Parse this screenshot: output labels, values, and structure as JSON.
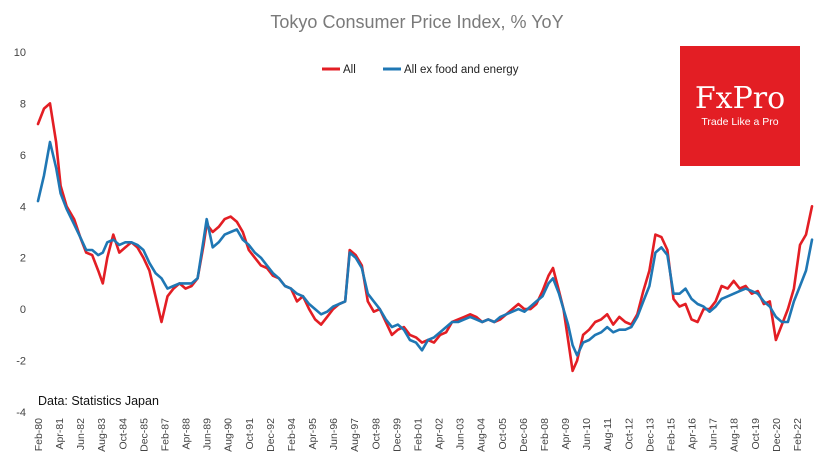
{
  "chart_data": {
    "type": "line",
    "title": "Tokyo Consumer Price Index, % YoY",
    "xlabel": "",
    "ylabel": "",
    "ylim": [
      -4,
      10
    ],
    "yticks": [
      -4,
      -2,
      0,
      2,
      4,
      6,
      8,
      10
    ],
    "grid": false,
    "legend": "top-center",
    "x_start": "Feb-80",
    "x_end": "Dec-22",
    "xticks": [
      "Feb-80",
      "Apr-81",
      "Jun-82",
      "Aug-83",
      "Oct-84",
      "Dec-85",
      "Feb-87",
      "Apr-88",
      "Jun-89",
      "Aug-90",
      "Oct-91",
      "Dec-92",
      "Feb-94",
      "Apr-95",
      "Jun-96",
      "Aug-97",
      "Oct-98",
      "Dec-99",
      "Feb-01",
      "Apr-02",
      "Jun-03",
      "Aug-04",
      "Oct-05",
      "Dec-06",
      "Feb-08",
      "Apr-09",
      "Jun-10",
      "Aug-11",
      "Oct-12",
      "Dec-13",
      "Feb-15",
      "Apr-16",
      "Jun-17",
      "Aug-18",
      "Oct-19",
      "Dec-20",
      "Feb-22"
    ],
    "series": [
      {
        "name": "All",
        "color": "#e31e24",
        "points": [
          [
            "1980-02",
            7.2
          ],
          [
            "1980-06",
            7.8
          ],
          [
            "1980-10",
            8.0
          ],
          [
            "1981-02",
            6.5
          ],
          [
            "1981-05",
            4.8
          ],
          [
            "1981-09",
            4.0
          ],
          [
            "1982-02",
            3.5
          ],
          [
            "1982-06",
            2.8
          ],
          [
            "1982-10",
            2.2
          ],
          [
            "1983-02",
            2.1
          ],
          [
            "1983-06",
            1.5
          ],
          [
            "1983-09",
            1.0
          ],
          [
            "1983-12",
            2.0
          ],
          [
            "1984-04",
            2.9
          ],
          [
            "1984-08",
            2.2
          ],
          [
            "1984-12",
            2.4
          ],
          [
            "1985-04",
            2.6
          ],
          [
            "1985-08",
            2.4
          ],
          [
            "1985-12",
            2.0
          ],
          [
            "1986-04",
            1.5
          ],
          [
            "1986-08",
            0.5
          ],
          [
            "1986-12",
            -0.5
          ],
          [
            "1987-04",
            0.5
          ],
          [
            "1987-08",
            0.8
          ],
          [
            "1987-12",
            1.0
          ],
          [
            "1988-04",
            0.8
          ],
          [
            "1988-08",
            0.9
          ],
          [
            "1988-12",
            1.2
          ],
          [
            "1989-04",
            2.5
          ],
          [
            "1989-06",
            3.3
          ],
          [
            "1989-10",
            3.0
          ],
          [
            "1990-02",
            3.2
          ],
          [
            "1990-06",
            3.5
          ],
          [
            "1990-10",
            3.6
          ],
          [
            "1991-02",
            3.4
          ],
          [
            "1991-06",
            3.0
          ],
          [
            "1991-10",
            2.3
          ],
          [
            "1992-02",
            2.0
          ],
          [
            "1992-06",
            1.7
          ],
          [
            "1992-10",
            1.6
          ],
          [
            "1993-02",
            1.3
          ],
          [
            "1993-06",
            1.2
          ],
          [
            "1993-10",
            0.9
          ],
          [
            "1994-02",
            0.8
          ],
          [
            "1994-06",
            0.3
          ],
          [
            "1994-10",
            0.5
          ],
          [
            "1995-02",
            0.0
          ],
          [
            "1995-06",
            -0.4
          ],
          [
            "1995-10",
            -0.6
          ],
          [
            "1996-02",
            -0.3
          ],
          [
            "1996-06",
            0.0
          ],
          [
            "1996-10",
            0.2
          ],
          [
            "1997-02",
            0.3
          ],
          [
            "1997-05",
            2.3
          ],
          [
            "1997-09",
            2.1
          ],
          [
            "1998-01",
            1.7
          ],
          [
            "1998-05",
            0.3
          ],
          [
            "1998-09",
            -0.1
          ],
          [
            "1999-01",
            0.0
          ],
          [
            "1999-05",
            -0.5
          ],
          [
            "1999-09",
            -1.0
          ],
          [
            "2000-01",
            -0.8
          ],
          [
            "2000-05",
            -0.7
          ],
          [
            "2000-09",
            -1.0
          ],
          [
            "2001-01",
            -1.1
          ],
          [
            "2001-05",
            -1.3
          ],
          [
            "2001-09",
            -1.2
          ],
          [
            "2002-01",
            -1.3
          ],
          [
            "2002-05",
            -1.0
          ],
          [
            "2002-09",
            -0.9
          ],
          [
            "2003-01",
            -0.5
          ],
          [
            "2003-05",
            -0.4
          ],
          [
            "2003-09",
            -0.3
          ],
          [
            "2004-01",
            -0.2
          ],
          [
            "2004-05",
            -0.3
          ],
          [
            "2004-09",
            -0.5
          ],
          [
            "2005-01",
            -0.4
          ],
          [
            "2005-05",
            -0.5
          ],
          [
            "2005-09",
            -0.4
          ],
          [
            "2006-01",
            -0.2
          ],
          [
            "2006-05",
            0.0
          ],
          [
            "2006-09",
            0.2
          ],
          [
            "2007-01",
            0.0
          ],
          [
            "2007-05",
            0.0
          ],
          [
            "2007-09",
            0.2
          ],
          [
            "2008-01",
            0.7
          ],
          [
            "2008-05",
            1.3
          ],
          [
            "2008-08",
            1.6
          ],
          [
            "2008-12",
            0.7
          ],
          [
            "2009-03",
            0.0
          ],
          [
            "2009-06",
            -1.2
          ],
          [
            "2009-09",
            -2.4
          ],
          [
            "2009-12",
            -2.0
          ],
          [
            "2010-04",
            -1.0
          ],
          [
            "2010-08",
            -0.8
          ],
          [
            "2010-12",
            -0.5
          ],
          [
            "2011-04",
            -0.4
          ],
          [
            "2011-08",
            -0.2
          ],
          [
            "2011-12",
            -0.6
          ],
          [
            "2012-04",
            -0.3
          ],
          [
            "2012-08",
            -0.5
          ],
          [
            "2012-12",
            -0.6
          ],
          [
            "2013-04",
            -0.2
          ],
          [
            "2013-08",
            0.7
          ],
          [
            "2013-12",
            1.5
          ],
          [
            "2014-04",
            2.9
          ],
          [
            "2014-08",
            2.8
          ],
          [
            "2014-12",
            2.3
          ],
          [
            "2015-04",
            0.4
          ],
          [
            "2015-08",
            0.1
          ],
          [
            "2015-12",
            0.2
          ],
          [
            "2016-04",
            -0.4
          ],
          [
            "2016-08",
            -0.5
          ],
          [
            "2016-12",
            0.0
          ],
          [
            "2017-04",
            0.0
          ],
          [
            "2017-08",
            0.3
          ],
          [
            "2017-12",
            0.9
          ],
          [
            "2018-04",
            0.8
          ],
          [
            "2018-08",
            1.1
          ],
          [
            "2018-12",
            0.8
          ],
          [
            "2019-04",
            0.9
          ],
          [
            "2019-08",
            0.6
          ],
          [
            "2019-12",
            0.7
          ],
          [
            "2020-04",
            0.2
          ],
          [
            "2020-08",
            0.3
          ],
          [
            "2020-12",
            -1.2
          ],
          [
            "2021-04",
            -0.6
          ],
          [
            "2021-08",
            0.0
          ],
          [
            "2021-12",
            0.8
          ],
          [
            "2022-04",
            2.5
          ],
          [
            "2022-08",
            2.9
          ],
          [
            "2022-12",
            4.0
          ]
        ]
      },
      {
        "name": "All ex food and energy",
        "color": "#1f77b4",
        "points": [
          [
            "1980-02",
            4.2
          ],
          [
            "1980-06",
            5.2
          ],
          [
            "1980-10",
            6.5
          ],
          [
            "1981-02",
            5.5
          ],
          [
            "1981-05",
            4.5
          ],
          [
            "1981-09",
            3.9
          ],
          [
            "1982-02",
            3.3
          ],
          [
            "1982-06",
            2.8
          ],
          [
            "1982-10",
            2.3
          ],
          [
            "1983-02",
            2.3
          ],
          [
            "1983-06",
            2.1
          ],
          [
            "1983-09",
            2.2
          ],
          [
            "1983-12",
            2.6
          ],
          [
            "1984-04",
            2.7
          ],
          [
            "1984-08",
            2.5
          ],
          [
            "1984-12",
            2.6
          ],
          [
            "1985-04",
            2.6
          ],
          [
            "1985-08",
            2.5
          ],
          [
            "1985-12",
            2.3
          ],
          [
            "1986-04",
            1.8
          ],
          [
            "1986-08",
            1.4
          ],
          [
            "1986-12",
            1.2
          ],
          [
            "1987-04",
            0.8
          ],
          [
            "1987-08",
            0.9
          ],
          [
            "1987-12",
            1.0
          ],
          [
            "1988-04",
            1.0
          ],
          [
            "1988-08",
            1.0
          ],
          [
            "1988-12",
            1.2
          ],
          [
            "1989-04",
            2.7
          ],
          [
            "1989-06",
            3.5
          ],
          [
            "1989-10",
            2.4
          ],
          [
            "1990-02",
            2.6
          ],
          [
            "1990-06",
            2.9
          ],
          [
            "1990-10",
            3.0
          ],
          [
            "1991-02",
            3.1
          ],
          [
            "1991-06",
            2.7
          ],
          [
            "1991-10",
            2.5
          ],
          [
            "1992-02",
            2.2
          ],
          [
            "1992-06",
            2.0
          ],
          [
            "1992-10",
            1.7
          ],
          [
            "1993-02",
            1.4
          ],
          [
            "1993-06",
            1.2
          ],
          [
            "1993-10",
            0.9
          ],
          [
            "1994-02",
            0.8
          ],
          [
            "1994-06",
            0.6
          ],
          [
            "1994-10",
            0.5
          ],
          [
            "1995-02",
            0.2
          ],
          [
            "1995-06",
            0.0
          ],
          [
            "1995-10",
            -0.2
          ],
          [
            "1996-02",
            -0.1
          ],
          [
            "1996-06",
            0.1
          ],
          [
            "1996-10",
            0.2
          ],
          [
            "1997-02",
            0.3
          ],
          [
            "1997-05",
            2.2
          ],
          [
            "1997-09",
            2.0
          ],
          [
            "1998-01",
            1.6
          ],
          [
            "1998-05",
            0.6
          ],
          [
            "1998-09",
            0.3
          ],
          [
            "1999-01",
            0.0
          ],
          [
            "1999-05",
            -0.4
          ],
          [
            "1999-09",
            -0.7
          ],
          [
            "2000-01",
            -0.6
          ],
          [
            "2000-05",
            -0.8
          ],
          [
            "2000-09",
            -1.2
          ],
          [
            "2001-01",
            -1.3
          ],
          [
            "2001-05",
            -1.6
          ],
          [
            "2001-09",
            -1.2
          ],
          [
            "2002-01",
            -1.1
          ],
          [
            "2002-05",
            -0.9
          ],
          [
            "2002-09",
            -0.7
          ],
          [
            "2003-01",
            -0.5
          ],
          [
            "2003-05",
            -0.5
          ],
          [
            "2003-09",
            -0.4
          ],
          [
            "2004-01",
            -0.3
          ],
          [
            "2004-05",
            -0.4
          ],
          [
            "2004-09",
            -0.5
          ],
          [
            "2005-01",
            -0.4
          ],
          [
            "2005-05",
            -0.5
          ],
          [
            "2005-09",
            -0.3
          ],
          [
            "2006-01",
            -0.2
          ],
          [
            "2006-05",
            -0.1
          ],
          [
            "2006-09",
            0.0
          ],
          [
            "2007-01",
            -0.1
          ],
          [
            "2007-05",
            0.1
          ],
          [
            "2007-09",
            0.3
          ],
          [
            "2008-01",
            0.5
          ],
          [
            "2008-05",
            1.0
          ],
          [
            "2008-08",
            1.2
          ],
          [
            "2008-12",
            0.6
          ],
          [
            "2009-03",
            0.0
          ],
          [
            "2009-06",
            -0.6
          ],
          [
            "2009-09",
            -1.4
          ],
          [
            "2009-12",
            -1.8
          ],
          [
            "2010-04",
            -1.3
          ],
          [
            "2010-08",
            -1.2
          ],
          [
            "2010-12",
            -1.0
          ],
          [
            "2011-04",
            -0.9
          ],
          [
            "2011-08",
            -0.7
          ],
          [
            "2011-12",
            -0.9
          ],
          [
            "2012-04",
            -0.8
          ],
          [
            "2012-08",
            -0.8
          ],
          [
            "2012-12",
            -0.7
          ],
          [
            "2013-04",
            -0.3
          ],
          [
            "2013-08",
            0.3
          ],
          [
            "2013-12",
            0.9
          ],
          [
            "2014-04",
            2.2
          ],
          [
            "2014-08",
            2.4
          ],
          [
            "2014-12",
            2.1
          ],
          [
            "2015-04",
            0.6
          ],
          [
            "2015-08",
            0.6
          ],
          [
            "2015-12",
            0.8
          ],
          [
            "2016-04",
            0.4
          ],
          [
            "2016-08",
            0.2
          ],
          [
            "2016-12",
            0.1
          ],
          [
            "2017-04",
            -0.1
          ],
          [
            "2017-08",
            0.1
          ],
          [
            "2017-12",
            0.4
          ],
          [
            "2018-04",
            0.5
          ],
          [
            "2018-08",
            0.6
          ],
          [
            "2018-12",
            0.7
          ],
          [
            "2019-04",
            0.8
          ],
          [
            "2019-08",
            0.7
          ],
          [
            "2019-12",
            0.6
          ],
          [
            "2020-04",
            0.3
          ],
          [
            "2020-08",
            0.1
          ],
          [
            "2020-12",
            -0.3
          ],
          [
            "2021-04",
            -0.5
          ],
          [
            "2021-08",
            -0.5
          ],
          [
            "2021-12",
            0.3
          ],
          [
            "2022-04",
            0.9
          ],
          [
            "2022-08",
            1.5
          ],
          [
            "2022-12",
            2.7
          ]
        ]
      }
    ]
  },
  "logo": {
    "name": "FxPro",
    "tagline": "Trade Like a Pro",
    "color": "#e31e24"
  },
  "source": "Data: Statistics Japan"
}
